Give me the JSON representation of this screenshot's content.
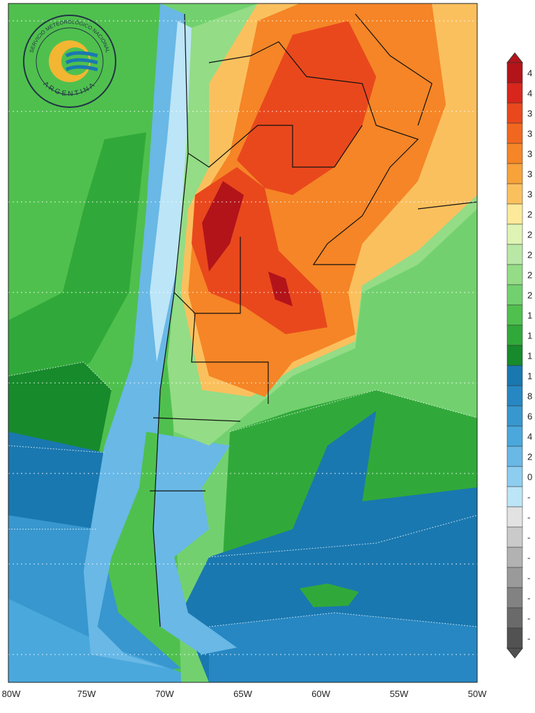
{
  "logo": {
    "agency": "SERVICIO METEOROLÓGICO NACIONAL",
    "country": "ARGENTINA"
  },
  "longitude_labels": [
    "80W",
    "75W",
    "70W",
    "65W",
    "60W",
    "55W",
    "50W"
  ],
  "colorbar": {
    "labels": [
      "4",
      "4",
      "3",
      "3",
      "3",
      "3",
      "3",
      "2",
      "2",
      "2",
      "2",
      "2",
      "1",
      "1",
      "1",
      "1",
      "8",
      "6",
      "4",
      "2",
      "0",
      "-",
      "-",
      "-",
      "-",
      "-",
      "-",
      "-",
      "-"
    ],
    "colors": [
      "#b3141a",
      "#d9261c",
      "#e9481d",
      "#f1671f",
      "#f58526",
      "#f8a23a",
      "#fbc05e",
      "#fde99a",
      "#def3b4",
      "#b9e8a6",
      "#94dc86",
      "#72d16e",
      "#4fc04e",
      "#31a93a",
      "#178a2c",
      "#1a78b0",
      "#2787c2",
      "#3797ce",
      "#4aa8dc",
      "#69b8e6",
      "#8dcdf0",
      "#bce5f7",
      "#e2e2e2",
      "#cacaca",
      "#b2b2b2",
      "#9a9a9a",
      "#828282",
      "#6a6a6a",
      "#525252"
    ]
  }
}
